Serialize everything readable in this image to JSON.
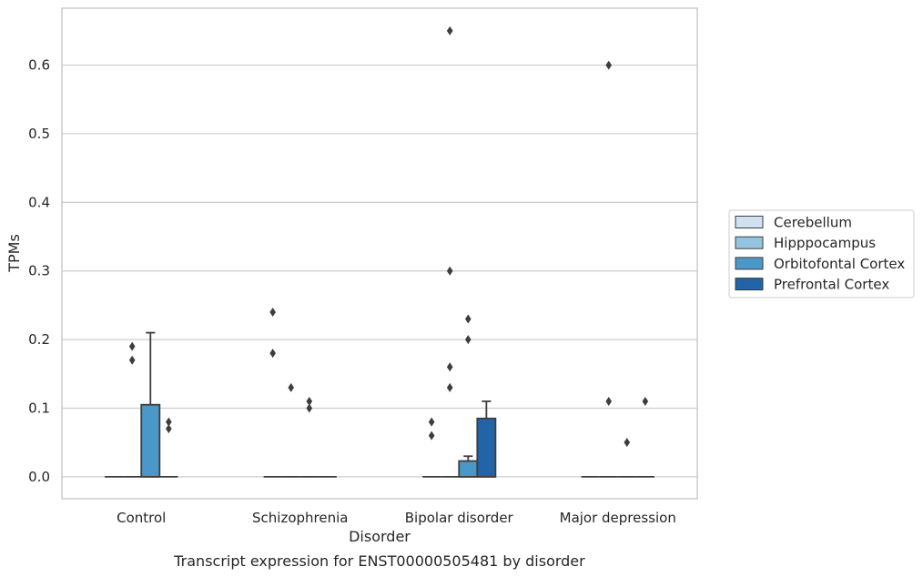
{
  "chart_data": {
    "type": "box",
    "title": "Transcript expression for ENST00000505481 by disorder",
    "xlabel": "Disorder",
    "ylabel": "TPMs",
    "ylim": [
      -0.032,
      0.683
    ],
    "yticks": [
      0.0,
      0.1,
      0.2,
      0.3,
      0.4,
      0.5,
      0.6
    ],
    "ytick_labels": [
      "0.0",
      "0.1",
      "0.2",
      "0.3",
      "0.4",
      "0.5",
      "0.6"
    ],
    "grid": "horizontal",
    "legend_position": "right",
    "categories": [
      "Control",
      "Schizophrenia",
      "Bipolar disorder",
      "Major depression"
    ],
    "series": [
      {
        "name": "Cerebellum",
        "color": "#d0e1f2",
        "boxes": [
          {
            "q1": 0,
            "median": 0,
            "q3": 0,
            "whislo": 0,
            "whishi": 0,
            "fliers": []
          },
          {
            "q1": 0,
            "median": 0,
            "q3": 0,
            "whislo": 0,
            "whishi": 0,
            "fliers": [
              0.18,
              0.24
            ]
          },
          {
            "q1": 0,
            "median": 0,
            "q3": 0,
            "whislo": 0,
            "whishi": 0,
            "fliers": [
              0.06,
              0.08
            ]
          },
          {
            "q1": 0,
            "median": 0,
            "q3": 0,
            "whislo": 0,
            "whishi": 0,
            "fliers": []
          }
        ]
      },
      {
        "name": "Hipppocampus",
        "color": "#94c4df",
        "boxes": [
          {
            "q1": 0,
            "median": 0,
            "q3": 0,
            "whislo": 0,
            "whishi": 0,
            "fliers": [
              0.17,
              0.19
            ]
          },
          {
            "q1": 0,
            "median": 0,
            "q3": 0,
            "whislo": 0,
            "whishi": 0,
            "fliers": [
              0.13
            ]
          },
          {
            "q1": 0,
            "median": 0,
            "q3": 0,
            "whislo": 0,
            "whishi": 0,
            "fliers": [
              0.13,
              0.16,
              0.3,
              0.65
            ]
          },
          {
            "q1": 0,
            "median": 0,
            "q3": 0,
            "whislo": 0,
            "whishi": 0,
            "fliers": [
              0.11,
              0.6
            ]
          }
        ]
      },
      {
        "name": "Orbitofontal Cortex",
        "color": "#4a98c9",
        "boxes": [
          {
            "q1": 0,
            "median": 0,
            "q3": 0.105,
            "whislo": 0,
            "whishi": 0.21,
            "fliers": []
          },
          {
            "q1": 0,
            "median": 0,
            "q3": 0,
            "whislo": 0,
            "whishi": 0,
            "fliers": [
              0.1,
              0.11
            ]
          },
          {
            "q1": 0,
            "median": 0,
            "q3": 0.023,
            "whislo": 0,
            "whishi": 0.03,
            "fliers": [
              0.2,
              0.23
            ]
          },
          {
            "q1": 0,
            "median": 0,
            "q3": 0,
            "whislo": 0,
            "whishi": 0,
            "fliers": [
              0.05
            ]
          }
        ]
      },
      {
        "name": "Prefrontal Cortex",
        "color": "#2264a8",
        "boxes": [
          {
            "q1": 0,
            "median": 0,
            "q3": 0,
            "whislo": 0,
            "whishi": 0,
            "fliers": [
              0.07,
              0.08
            ]
          },
          {
            "q1": 0,
            "median": 0,
            "q3": 0,
            "whislo": 0,
            "whishi": 0,
            "fliers": []
          },
          {
            "q1": 0,
            "median": 0,
            "q3": 0.085,
            "whislo": 0,
            "whishi": 0.11,
            "fliers": []
          },
          {
            "q1": 0,
            "median": 0,
            "q3": 0,
            "whislo": 0,
            "whishi": 0,
            "fliers": [
              0.11
            ]
          }
        ]
      }
    ]
  }
}
